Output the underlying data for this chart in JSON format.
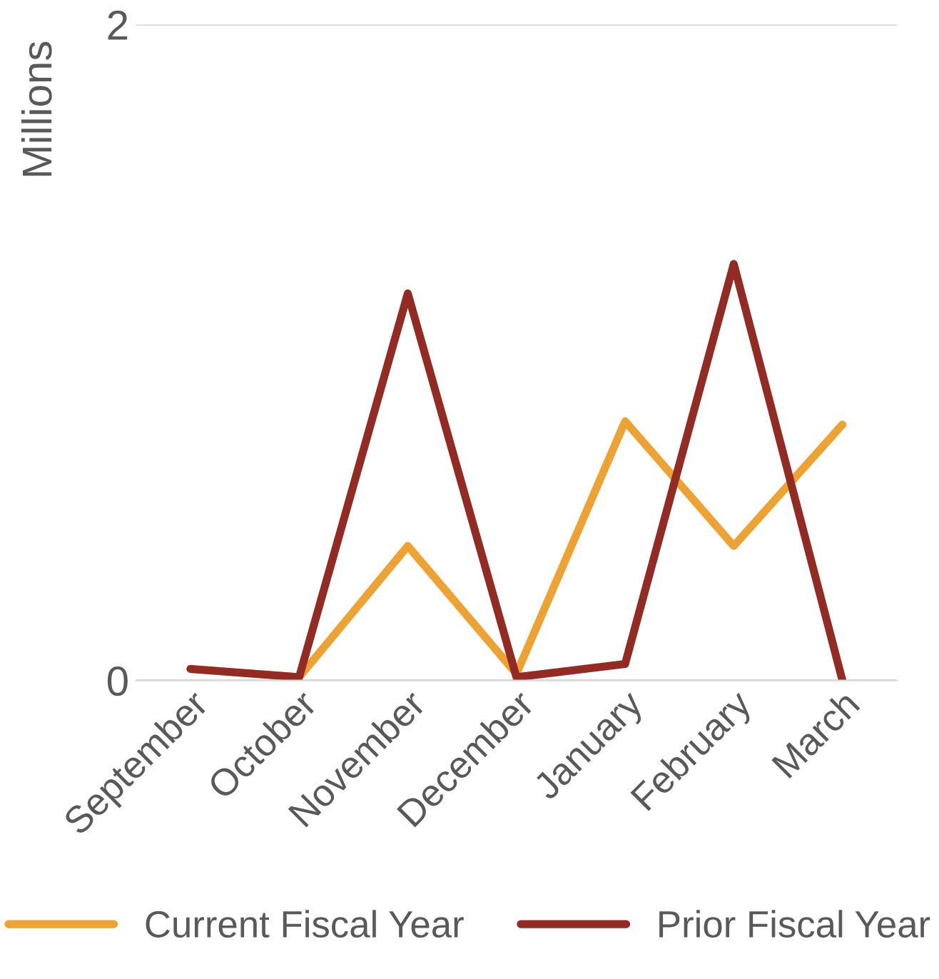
{
  "chart_data": {
    "type": "line",
    "ylabel": "Millions",
    "categories": [
      "September",
      "October",
      "November",
      "December",
      "January",
      "February",
      "March"
    ],
    "series": [
      {
        "name": "Current Fiscal Year",
        "color": "#eda235",
        "values": [
          0.035,
          0.01,
          0.41,
          0.02,
          0.79,
          0.41,
          0.78
        ]
      },
      {
        "name": "Prior Fiscal Year",
        "color": "#922b24",
        "values": [
          0.035,
          0.01,
          1.18,
          0.01,
          0.05,
          1.27,
          0.0
        ]
      }
    ],
    "ylim": [
      0,
      2
    ],
    "yticks": [
      0,
      2
    ],
    "grid": "y",
    "legend": "bottom",
    "marker": "none",
    "line_style": "solid"
  }
}
